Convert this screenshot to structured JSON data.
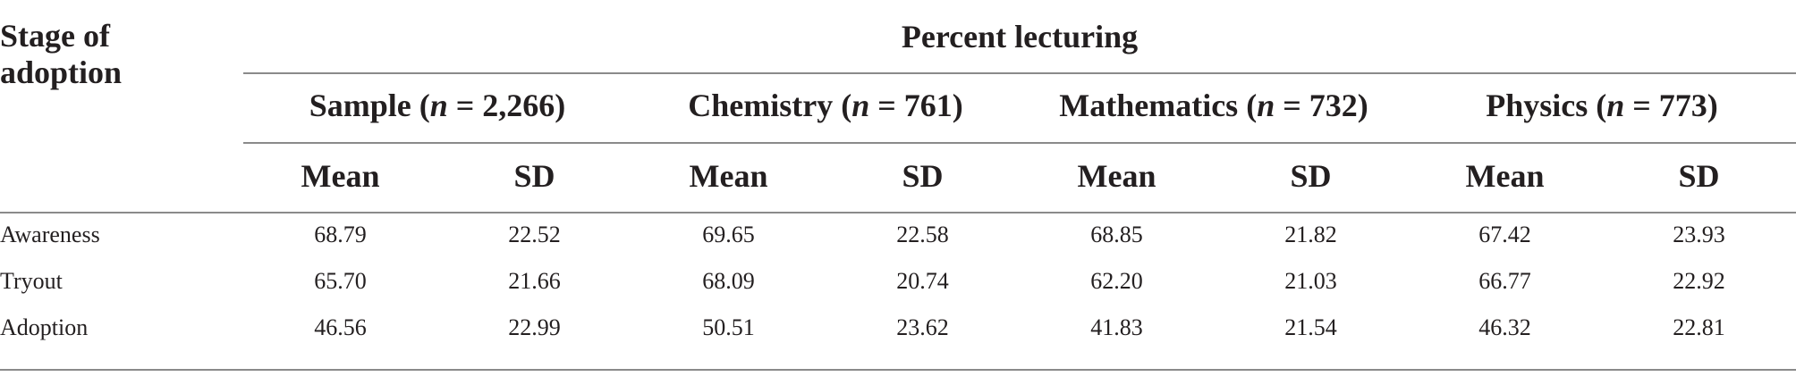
{
  "table": {
    "stage_header": "Stage of adoption",
    "span_header": "Percent lecturing",
    "groups": [
      {
        "name": "Sample",
        "n_label": "n",
        "n_value": "= 2,266"
      },
      {
        "name": "Chemistry",
        "n_label": "n",
        "n_value": "= 761"
      },
      {
        "name": "Mathematics",
        "n_label": "n",
        "n_value": "= 732"
      },
      {
        "name": "Physics",
        "n_label": "n",
        "n_value": "= 773"
      }
    ],
    "sub_headers": [
      "Mean",
      "SD",
      "Mean",
      "SD",
      "Mean",
      "SD",
      "Mean",
      "SD"
    ],
    "rows": [
      {
        "label": "Awareness",
        "values": [
          "68.79",
          "22.52",
          "69.65",
          "22.58",
          "68.85",
          "21.82",
          "67.42",
          "23.93"
        ]
      },
      {
        "label": "Tryout",
        "values": [
          "65.70",
          "21.66",
          "68.09",
          "20.74",
          "62.20",
          "21.03",
          "66.77",
          "22.92"
        ]
      },
      {
        "label": "Adoption",
        "values": [
          "46.56",
          "22.99",
          "50.51",
          "23.62",
          "41.83",
          "21.54",
          "46.32",
          "22.81"
        ]
      }
    ]
  }
}
